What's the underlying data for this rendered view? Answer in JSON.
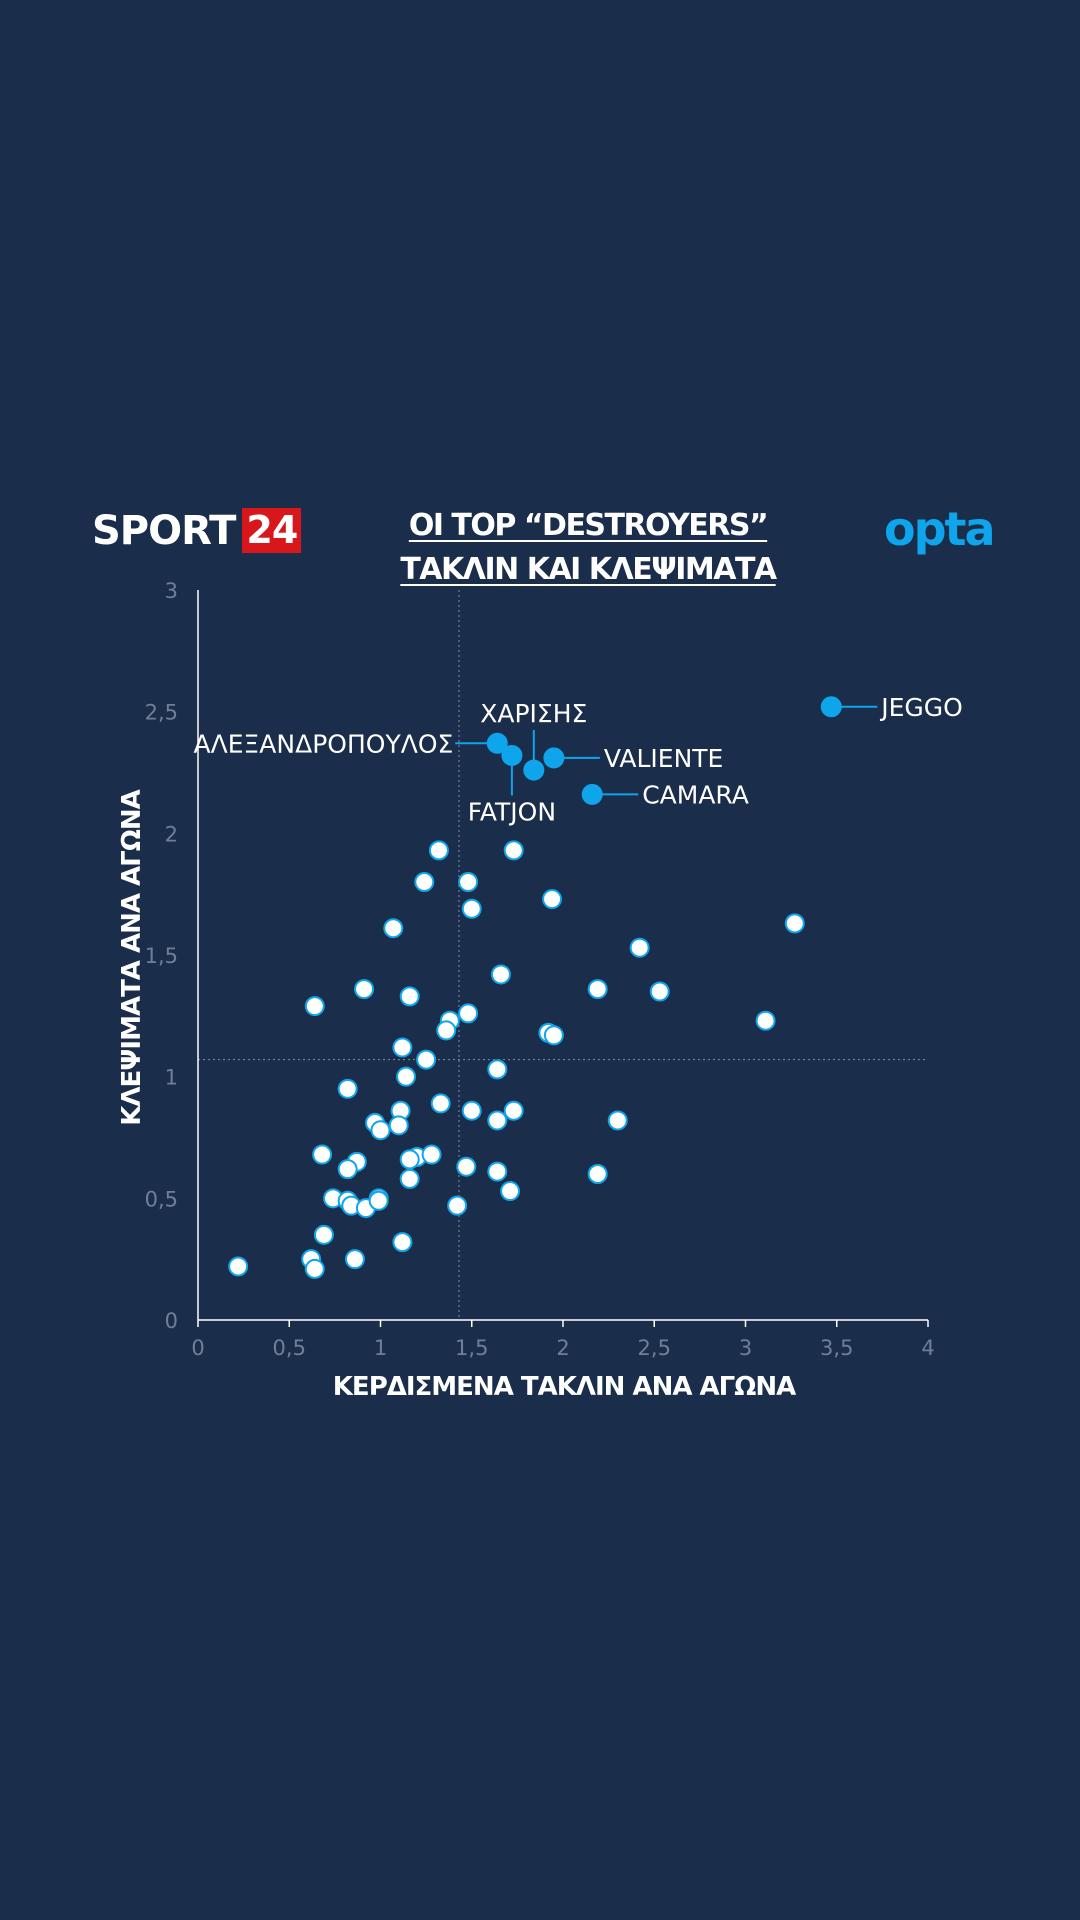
{
  "header": {
    "brand_word": "SPORT",
    "brand_number": "24",
    "title_line1": "ΟΙ TOP “DESTROYERS”",
    "title_line2": "ΤΑΚΛΙΝ ΚΑΙ ΚΛΕΨΙΜΑΤΑ",
    "partner_logo": "opta"
  },
  "colors": {
    "background": "#1a2d4a",
    "highlight": "#0ea5ea",
    "point_fill": "#ffffff",
    "point_stroke": "#0ea5ea",
    "axis": "#ffffff",
    "tick_text": "#6e7f97",
    "average_line": "#7f8ea6",
    "brand_red": "#d8171d"
  },
  "chart_data": {
    "type": "scatter",
    "xlabel": "ΚΕΡΔΙΣΜΕΝΑ ΤΑΚΛΙΝ ΑΝΑ ΑΓΩΝΑ",
    "ylabel": "ΚΛΕΨΙΜΑΤΑ ΑΝΑ ΑΓΩΝΑ",
    "xlim": [
      0,
      4
    ],
    "ylim": [
      0,
      3
    ],
    "x_ticks": [
      "0",
      "0,5",
      "1",
      "1,5",
      "2",
      "2,5",
      "3",
      "3,5",
      "4"
    ],
    "y_ticks": [
      "0",
      "0,5",
      "1",
      "1,5",
      "2",
      "2,5",
      "3"
    ],
    "average_lines": {
      "x": 1.43,
      "y": 1.07
    },
    "highlighted": [
      {
        "label": "JEGGO",
        "x": 3.47,
        "y": 2.52
      },
      {
        "label": "ΑΛΕΞΑΝΔΡΟΠΟΥΛΟΣ",
        "x": 1.64,
        "y": 2.37
      },
      {
        "label": "FATJON",
        "x": 1.72,
        "y": 2.32
      },
      {
        "label": "ΧΑΡΙΣΗΣ",
        "x": 1.84,
        "y": 2.26
      },
      {
        "label": "VALIENTE",
        "x": 1.95,
        "y": 2.31
      },
      {
        "label": "CAMARA",
        "x": 2.16,
        "y": 2.16
      }
    ],
    "points": [
      [
        1.32,
        1.93
      ],
      [
        1.73,
        1.93
      ],
      [
        1.24,
        1.8
      ],
      [
        1.48,
        1.8
      ],
      [
        1.5,
        1.69
      ],
      [
        1.94,
        1.73
      ],
      [
        1.07,
        1.61
      ],
      [
        3.27,
        1.63
      ],
      [
        2.42,
        1.53
      ],
      [
        1.66,
        1.42
      ],
      [
        0.91,
        1.36
      ],
      [
        1.16,
        1.33
      ],
      [
        2.19,
        1.36
      ],
      [
        2.53,
        1.35
      ],
      [
        0.64,
        1.29
      ],
      [
        1.48,
        1.26
      ],
      [
        1.38,
        1.23
      ],
      [
        1.36,
        1.19
      ],
      [
        1.92,
        1.18
      ],
      [
        1.95,
        1.17
      ],
      [
        3.11,
        1.23
      ],
      [
        1.12,
        1.12
      ],
      [
        1.25,
        1.07
      ],
      [
        1.64,
        1.03
      ],
      [
        1.14,
        1.0
      ],
      [
        0.82,
        0.95
      ],
      [
        1.33,
        0.89
      ],
      [
        1.11,
        0.86
      ],
      [
        1.5,
        0.86
      ],
      [
        1.73,
        0.86
      ],
      [
        0.97,
        0.81
      ],
      [
        1.1,
        0.8
      ],
      [
        1.0,
        0.78
      ],
      [
        1.64,
        0.82
      ],
      [
        2.3,
        0.82
      ],
      [
        0.68,
        0.68
      ],
      [
        1.2,
        0.67
      ],
      [
        1.28,
        0.68
      ],
      [
        0.87,
        0.65
      ],
      [
        1.16,
        0.66
      ],
      [
        0.82,
        0.62
      ],
      [
        1.47,
        0.63
      ],
      [
        1.64,
        0.61
      ],
      [
        2.19,
        0.6
      ],
      [
        1.16,
        0.58
      ],
      [
        1.71,
        0.53
      ],
      [
        0.74,
        0.5
      ],
      [
        0.82,
        0.49
      ],
      [
        0.99,
        0.5
      ],
      [
        0.84,
        0.47
      ],
      [
        0.92,
        0.46
      ],
      [
        0.99,
        0.49
      ],
      [
        1.42,
        0.47
      ],
      [
        0.69,
        0.35
      ],
      [
        1.12,
        0.32
      ],
      [
        0.62,
        0.25
      ],
      [
        0.86,
        0.25
      ],
      [
        0.64,
        0.21
      ],
      [
        0.22,
        0.22
      ]
    ]
  }
}
